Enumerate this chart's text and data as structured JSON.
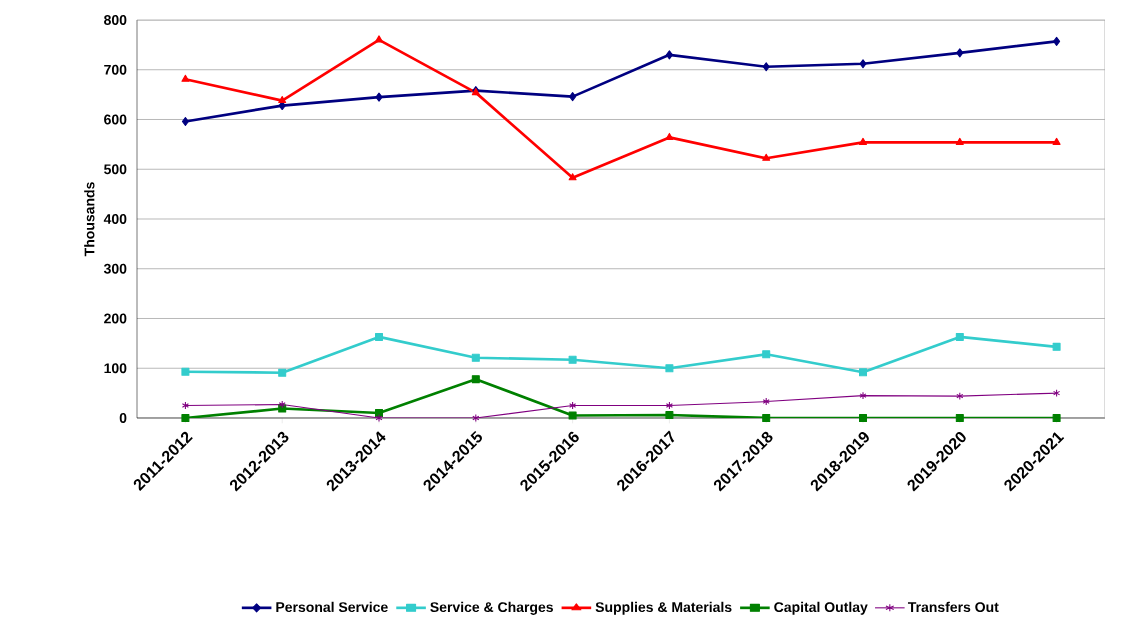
{
  "chart_data": {
    "type": "line",
    "ylabel": "Thousands",
    "categories": [
      "2011-2012",
      "2012-2013",
      "2013-2014",
      "2014-2015",
      "2015-2016",
      "2016-2017",
      "2017-2018",
      "2018-2019",
      "2019-2020",
      "2020-2021"
    ],
    "ylim": [
      0,
      800
    ],
    "yticks": [
      0,
      100,
      200,
      300,
      400,
      500,
      600,
      700,
      800
    ],
    "grid": "y",
    "legend": "bottom",
    "line_style": "solid",
    "series": [
      {
        "name": "Personal Service",
        "color": "#000080",
        "marker": "diamond",
        "values": [
          596,
          628,
          645,
          658,
          646,
          730,
          706,
          712,
          734,
          757
        ]
      },
      {
        "name": "Service & Charges",
        "color": "#33cccc",
        "marker": "square",
        "values": [
          93,
          91,
          163,
          121,
          117,
          100,
          128,
          92,
          163,
          143
        ]
      },
      {
        "name": "Supplies & Materials",
        "color": "#ff0000",
        "marker": "triangle",
        "values": [
          681,
          638,
          760,
          654,
          483,
          564,
          522,
          554,
          554,
          554
        ]
      },
      {
        "name": "Capital Outlay",
        "color": "#008000",
        "marker": "square",
        "values": [
          0,
          19,
          10,
          78,
          5,
          6,
          0,
          0,
          0,
          0
        ]
      },
      {
        "name": "Transfers Out",
        "color": "#800080",
        "marker": "cross",
        "values": [
          25,
          27,
          0,
          0,
          25,
          25,
          33,
          45,
          44,
          50
        ]
      }
    ]
  }
}
